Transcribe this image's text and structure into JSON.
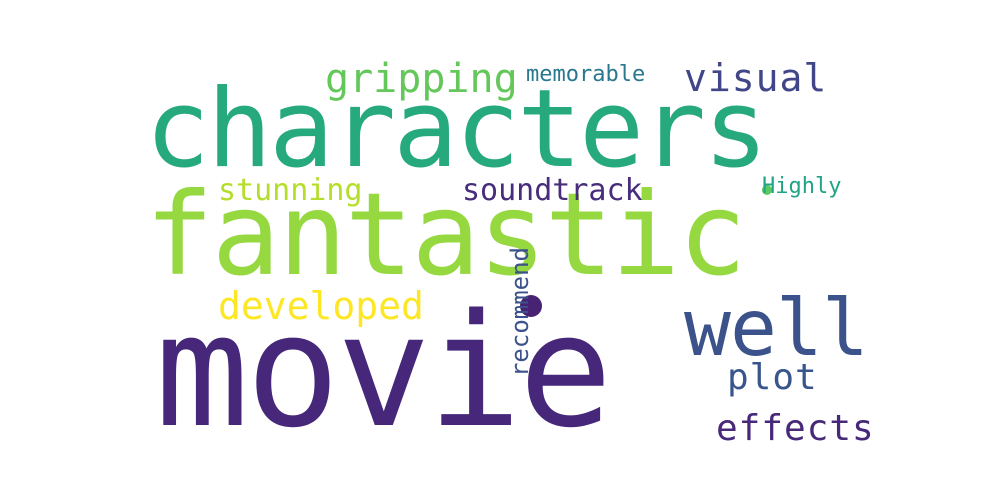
{
  "words": {
    "movie": {
      "text": "movie",
      "color": "#46277a"
    },
    "fantastic": {
      "text": "fantastic",
      "color": "#95d840"
    },
    "characters": {
      "text": "characters",
      "color": "#26a97d"
    },
    "well": {
      "text": "well",
      "color": "#3b528b"
    },
    "gripping": {
      "text": "gripping",
      "color": "#64c75a"
    },
    "developed": {
      "text": "developed",
      "color": "#fde725"
    },
    "stunning": {
      "text": "stunning",
      "color": "#b5de2b"
    },
    "soundtrack": {
      "text": "soundtrack",
      "color": "#472d7b"
    },
    "visual": {
      "text": "visual",
      "color": "#404688"
    },
    "plot": {
      "text": "plot",
      "color": "#39568c"
    },
    "effects": {
      "text": "effects",
      "color": "#482878"
    },
    "memorable": {
      "text": "memorable",
      "color": "#2a788e"
    },
    "highly": {
      "text": "Highly",
      "color": "#20a486"
    },
    "recommend": {
      "text": "recommend",
      "color": "#3b528b"
    }
  }
}
